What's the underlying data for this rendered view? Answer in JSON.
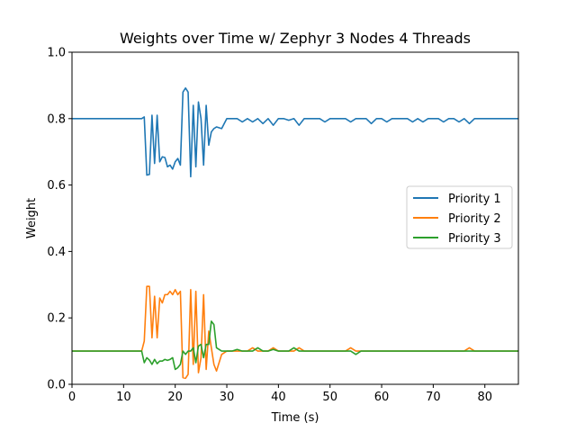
{
  "chart_data": {
    "type": "line",
    "title": "Weights over Time w/ Zephyr 3 Nodes 4 Threads",
    "xlabel": "Time (s)",
    "ylabel": "Weight",
    "xlim": [
      0,
      86.5
    ],
    "ylim": [
      0,
      1.0
    ],
    "xticks": [
      0,
      10,
      20,
      30,
      40,
      50,
      60,
      70,
      80
    ],
    "yticks": [
      0.0,
      0.2,
      0.4,
      0.6,
      0.8,
      1.0
    ],
    "xtick_labels": [
      "0",
      "10",
      "20",
      "30",
      "40",
      "50",
      "60",
      "70",
      "80"
    ],
    "ytick_labels": [
      "0.0",
      "0.2",
      "0.4",
      "0.6",
      "0.8",
      "1.0"
    ],
    "legend_position": "center-right",
    "grid": false,
    "series": [
      {
        "name": "Priority 1",
        "color": "#1f77b4",
        "x": [
          0,
          13.5,
          14.0,
          14.5,
          15.0,
          15.5,
          16.0,
          16.5,
          17.0,
          17.5,
          18.0,
          18.5,
          19.0,
          19.5,
          20.0,
          20.5,
          21.0,
          21.5,
          22.0,
          22.5,
          23.0,
          23.5,
          24.0,
          24.5,
          25.0,
          25.5,
          26.0,
          26.5,
          27.0,
          27.5,
          28.0,
          29.0,
          30.0,
          31.0,
          32.0,
          33.0,
          34.0,
          35.0,
          36.0,
          37.0,
          38.0,
          39.0,
          40.0,
          41.0,
          42.0,
          43.0,
          44.0,
          45.0,
          46.0,
          47.0,
          48.0,
          49.0,
          50.0,
          51.0,
          52.0,
          53.0,
          54.0,
          55.0,
          56.0,
          57.0,
          58.0,
          59.0,
          60.0,
          61.0,
          62.0,
          63.0,
          64.0,
          65.0,
          66.0,
          67.0,
          68.0,
          69.0,
          70.0,
          71.0,
          72.0,
          73.0,
          74.0,
          75.0,
          76.0,
          77.0,
          78.0,
          79.0,
          80.0,
          81.0,
          82.0,
          83.0,
          84.0,
          85.0,
          86.5
        ],
        "values": [
          0.8,
          0.8,
          0.805,
          0.63,
          0.632,
          0.81,
          0.665,
          0.81,
          0.67,
          0.685,
          0.683,
          0.655,
          0.66,
          0.648,
          0.67,
          0.68,
          0.66,
          0.88,
          0.892,
          0.88,
          0.625,
          0.84,
          0.655,
          0.85,
          0.8,
          0.66,
          0.84,
          0.72,
          0.76,
          0.77,
          0.775,
          0.77,
          0.8,
          0.8,
          0.8,
          0.79,
          0.8,
          0.79,
          0.8,
          0.785,
          0.8,
          0.78,
          0.8,
          0.8,
          0.795,
          0.8,
          0.78,
          0.8,
          0.8,
          0.8,
          0.8,
          0.79,
          0.8,
          0.8,
          0.8,
          0.8,
          0.79,
          0.8,
          0.8,
          0.8,
          0.785,
          0.8,
          0.8,
          0.79,
          0.8,
          0.8,
          0.8,
          0.8,
          0.79,
          0.8,
          0.79,
          0.8,
          0.8,
          0.8,
          0.79,
          0.8,
          0.8,
          0.79,
          0.8,
          0.785,
          0.8,
          0.8,
          0.8,
          0.8,
          0.8,
          0.8,
          0.8,
          0.8,
          0.8
        ]
      },
      {
        "name": "Priority 2",
        "color": "#ff7f0e",
        "x": [
          0,
          13.5,
          14.0,
          14.5,
          15.0,
          15.5,
          16.0,
          16.5,
          17.0,
          17.5,
          18.0,
          18.5,
          19.0,
          19.5,
          20.0,
          20.5,
          21.0,
          21.5,
          22.0,
          22.5,
          23.0,
          23.5,
          24.0,
          24.5,
          25.0,
          25.5,
          26.0,
          26.5,
          27.0,
          27.5,
          28.0,
          29.0,
          30.0,
          31.0,
          32.0,
          33.0,
          34.0,
          35.0,
          36.0,
          37.0,
          38.0,
          39.0,
          40.0,
          41.0,
          42.0,
          43.0,
          44.0,
          45.0,
          46.0,
          47.0,
          48.0,
          49.0,
          50.0,
          51.0,
          52.0,
          53.0,
          54.0,
          55.0,
          56.0,
          57.0,
          58.0,
          59.0,
          60.0,
          61.0,
          62.0,
          63.0,
          64.0,
          65.0,
          66.0,
          67.0,
          68.0,
          69.0,
          70.0,
          71.0,
          72.0,
          73.0,
          74.0,
          75.0,
          76.0,
          77.0,
          78.0,
          79.0,
          80.0,
          81.0,
          82.0,
          83.0,
          84.0,
          85.0,
          86.5
        ],
        "values": [
          0.1,
          0.1,
          0.13,
          0.295,
          0.295,
          0.14,
          0.265,
          0.14,
          0.26,
          0.245,
          0.27,
          0.27,
          0.28,
          0.27,
          0.285,
          0.27,
          0.28,
          0.02,
          0.018,
          0.03,
          0.285,
          0.06,
          0.28,
          0.035,
          0.08,
          0.27,
          0.045,
          0.16,
          0.11,
          0.06,
          0.04,
          0.09,
          0.1,
          0.1,
          0.1,
          0.1,
          0.1,
          0.11,
          0.1,
          0.1,
          0.1,
          0.11,
          0.1,
          0.1,
          0.1,
          0.1,
          0.11,
          0.1,
          0.1,
          0.1,
          0.1,
          0.1,
          0.1,
          0.1,
          0.1,
          0.1,
          0.11,
          0.1,
          0.1,
          0.1,
          0.1,
          0.1,
          0.1,
          0.1,
          0.1,
          0.1,
          0.1,
          0.1,
          0.1,
          0.1,
          0.1,
          0.1,
          0.1,
          0.1,
          0.1,
          0.1,
          0.1,
          0.1,
          0.1,
          0.11,
          0.1,
          0.1,
          0.1,
          0.1,
          0.1,
          0.1,
          0.1,
          0.1,
          0.1
        ]
      },
      {
        "name": "Priority 3",
        "color": "#2ca02c",
        "x": [
          0,
          13.5,
          14.0,
          14.5,
          15.0,
          15.5,
          16.0,
          16.5,
          17.0,
          17.5,
          18.0,
          18.5,
          19.0,
          19.5,
          20.0,
          20.5,
          21.0,
          21.5,
          22.0,
          22.5,
          23.0,
          23.5,
          24.0,
          24.5,
          25.0,
          25.5,
          26.0,
          26.5,
          27.0,
          27.5,
          28.0,
          29.0,
          30.0,
          31.0,
          32.0,
          33.0,
          34.0,
          35.0,
          36.0,
          37.0,
          38.0,
          39.0,
          40.0,
          41.0,
          42.0,
          43.0,
          44.0,
          45.0,
          46.0,
          47.0,
          48.0,
          49.0,
          50.0,
          51.0,
          52.0,
          53.0,
          54.0,
          55.0,
          56.0,
          57.0,
          58.0,
          59.0,
          60.0,
          61.0,
          62.0,
          63.0,
          64.0,
          65.0,
          66.0,
          67.0,
          68.0,
          69.0,
          70.0,
          71.0,
          72.0,
          73.0,
          74.0,
          75.0,
          76.0,
          77.0,
          78.0,
          79.0,
          80.0,
          81.0,
          82.0,
          83.0,
          84.0,
          85.0,
          86.5
        ],
        "values": [
          0.1,
          0.1,
          0.065,
          0.08,
          0.073,
          0.06,
          0.075,
          0.062,
          0.07,
          0.07,
          0.075,
          0.072,
          0.075,
          0.08,
          0.045,
          0.05,
          0.06,
          0.1,
          0.09,
          0.1,
          0.1,
          0.11,
          0.065,
          0.115,
          0.12,
          0.08,
          0.12,
          0.12,
          0.19,
          0.18,
          0.11,
          0.1,
          0.1,
          0.1,
          0.105,
          0.1,
          0.1,
          0.1,
          0.11,
          0.1,
          0.1,
          0.105,
          0.1,
          0.1,
          0.1,
          0.11,
          0.1,
          0.1,
          0.1,
          0.1,
          0.1,
          0.1,
          0.1,
          0.1,
          0.1,
          0.1,
          0.1,
          0.09,
          0.1,
          0.1,
          0.1,
          0.1,
          0.1,
          0.1,
          0.1,
          0.1,
          0.1,
          0.1,
          0.1,
          0.1,
          0.1,
          0.1,
          0.1,
          0.1,
          0.1,
          0.1,
          0.1,
          0.1,
          0.1,
          0.1,
          0.1,
          0.1,
          0.1,
          0.1,
          0.1,
          0.1,
          0.1,
          0.1,
          0.1
        ]
      }
    ]
  }
}
